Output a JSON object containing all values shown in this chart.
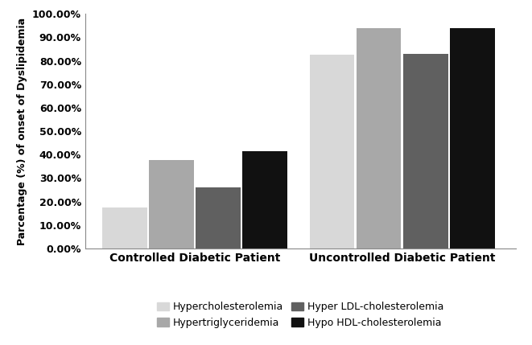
{
  "groups": [
    "Controlled Diabetic Patient",
    "Uncontrolled Diabetic Patient"
  ],
  "categories": [
    "Hypercholesterolemia",
    "Hypertriglyceridemia",
    "Hyper LDL-cholesterolemia",
    "Hypo HDL-cholesterolemia"
  ],
  "values": {
    "Controlled Diabetic Patient": [
      17.5,
      37.5,
      26.0,
      41.5
    ],
    "Uncontrolled Diabetic Patient": [
      82.5,
      94.0,
      83.0,
      94.0
    ]
  },
  "colors": [
    "#d8d8d8",
    "#a8a8a8",
    "#606060",
    "#111111"
  ],
  "ylabel": "Parcentage (%) of onset of Dyslipidemia",
  "ylim": [
    0,
    100
  ],
  "yticks": [
    0,
    10,
    20,
    30,
    40,
    50,
    60,
    70,
    80,
    90,
    100
  ],
  "ytick_labels": [
    "0.00%",
    "10.00%",
    "20.00%",
    "30.00%",
    "40.00%",
    "50.00%",
    "60.00%",
    "70.00%",
    "80.00%",
    "90.00%",
    "100.00%"
  ],
  "bar_width": 0.11,
  "bar_spacing": 0.005,
  "group_centers": [
    0.27,
    0.78
  ],
  "xlim": [
    0.0,
    1.06
  ],
  "legend_labels": [
    "Hypercholesterolemia",
    "Hypertriglyceridemia",
    "Hyper LDL-cholesterolemia",
    "Hypo HDL-cholesterolemia"
  ],
  "background_color": "#ffffff",
  "fontsize_axis_label": 9,
  "fontsize_tick": 9,
  "fontsize_legend": 9,
  "fontsize_xtick": 10
}
